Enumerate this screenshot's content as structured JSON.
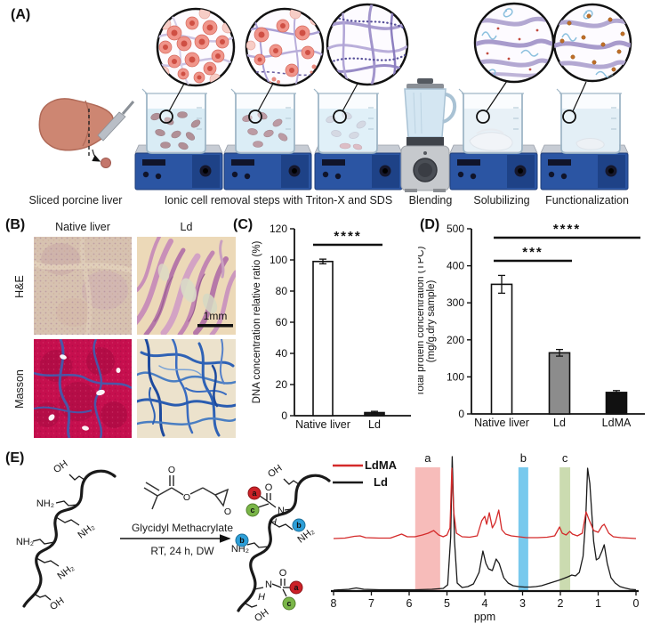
{
  "panels": {
    "A": {
      "label": "(A)",
      "captions": [
        "Sliced porcine liver",
        "Ionic cell removal steps with Triton-X and SDS",
        "Blending",
        "Solubilizing",
        "Functionalization"
      ]
    },
    "B": {
      "label": "(B)",
      "col_headers": [
        "Native liver",
        "Ld"
      ],
      "row_headers": [
        "H&E",
        "Masson"
      ],
      "scale_bar": "1mm"
    },
    "C": {
      "label": "(C)"
    },
    "D": {
      "label": "(D)"
    },
    "E": {
      "label": "(E)",
      "reagent": "Glycidyl Methacrylate",
      "conditions": "RT, 24 h, DW",
      "chem_labels": {
        "oh": "OH",
        "nh2": "NH₂",
        "n": "N",
        "h": "H",
        "o": "O",
        "a": "a",
        "b": "b",
        "c": "c"
      }
    }
  },
  "palette": {
    "stirrer_blue": "#2b55a3",
    "liquid_blue": "#cfe7f3",
    "masson_red": "#c60f4e",
    "masson_blue": "#2f62b5",
    "he_tan": "#ecd9b8",
    "he_pink": "#c289b6",
    "liver_brown": "#cd8672"
  },
  "chart_data": [
    {
      "id": "dna",
      "type": "bar",
      "panel": "C",
      "categories": [
        "Native liver",
        "Ld"
      ],
      "values": [
        99,
        2
      ],
      "errors": [
        1.5,
        0.8
      ],
      "bar_colors": [
        "#ffffff",
        "#1a1a1a"
      ],
      "ylabel": "DNA concentration relative ratio (%)",
      "ylim": [
        0,
        120
      ],
      "yticks": [
        0,
        20,
        40,
        60,
        80,
        100,
        120
      ],
      "significance": [
        {
          "label": "****",
          "between": [
            "Native liver",
            "Ld"
          ]
        }
      ]
    },
    {
      "id": "tpc",
      "type": "bar",
      "panel": "D",
      "categories": [
        "Native liver",
        "Ld",
        "LdMA"
      ],
      "values": [
        350,
        165,
        58
      ],
      "errors": [
        24,
        9,
        5
      ],
      "bar_colors": [
        "#ffffff",
        "#8c8c8c",
        "#111111"
      ],
      "ylabel_lines": [
        "Total protein concentration (TPC)",
        "(mg/g.dry sample)"
      ],
      "ylim": [
        0,
        500
      ],
      "yticks": [
        0,
        100,
        200,
        300,
        400,
        500
      ],
      "significance": [
        {
          "label": "***",
          "between": [
            "Native liver",
            "Ld"
          ]
        },
        {
          "label": "****",
          "between": [
            "Native liver",
            "LdMA"
          ]
        }
      ]
    },
    {
      "id": "nmr",
      "type": "line",
      "panel": "E",
      "xlabel": "ppm",
      "x_range": [
        8,
        0
      ],
      "xticks": [
        8,
        7,
        6,
        5,
        4,
        3,
        2,
        1,
        0
      ],
      "legend": [
        {
          "name": "LdMA",
          "color": "#d42a2a"
        },
        {
          "name": "Ld",
          "color": "#1a1a1a"
        }
      ],
      "bands": [
        {
          "label": "a",
          "ppm": [
            5.84,
            5.18
          ],
          "color": "#f2908c",
          "opacity": 0.6
        },
        {
          "label": "b",
          "ppm": [
            3.11,
            2.85
          ],
          "color": "#56bbe8",
          "opacity": 0.8
        },
        {
          "label": "c",
          "ppm": [
            2.02,
            1.74
          ],
          "color": "#b5cc8e",
          "opacity": 0.7
        }
      ],
      "series": [
        {
          "name": "LdMA",
          "color": "#d42a2a",
          "points": [
            [
              8,
              0
            ],
            [
              7.7,
              0.5
            ],
            [
              7.45,
              2.5
            ],
            [
              7.3,
              3
            ],
            [
              7.15,
              1
            ],
            [
              6.8,
              0.5
            ],
            [
              6.5,
              0.5
            ],
            [
              6.2,
              5
            ],
            [
              6.05,
              2
            ],
            [
              5.85,
              2
            ],
            [
              5.65,
              4
            ],
            [
              5.5,
              6
            ],
            [
              5.35,
              9
            ],
            [
              5.22,
              4
            ],
            [
              5.1,
              2
            ],
            [
              5.0,
              4
            ],
            [
              4.92,
              12
            ],
            [
              4.87,
              79
            ],
            [
              4.82,
              30
            ],
            [
              4.75,
              6
            ],
            [
              4.6,
              2
            ],
            [
              4.4,
              1.5
            ],
            [
              4.2,
              3
            ],
            [
              4.08,
              20
            ],
            [
              4.0,
              25
            ],
            [
              3.95,
              16
            ],
            [
              3.88,
              29
            ],
            [
              3.8,
              12
            ],
            [
              3.72,
              18
            ],
            [
              3.63,
              32
            ],
            [
              3.55,
              10
            ],
            [
              3.45,
              5
            ],
            [
              3.3,
              3
            ],
            [
              3.1,
              2
            ],
            [
              2.9,
              1
            ],
            [
              2.6,
              1
            ],
            [
              2.35,
              1.5
            ],
            [
              2.15,
              3
            ],
            [
              2.02,
              13
            ],
            [
              1.95,
              6
            ],
            [
              1.85,
              4
            ],
            [
              1.75,
              8
            ],
            [
              1.68,
              5
            ],
            [
              1.55,
              3
            ],
            [
              1.42,
              6
            ],
            [
              1.32,
              30
            ],
            [
              1.25,
              22
            ],
            [
              1.12,
              9
            ],
            [
              1.0,
              7
            ],
            [
              0.9,
              14
            ],
            [
              0.84,
              16
            ],
            [
              0.72,
              6
            ],
            [
              0.6,
              2
            ],
            [
              0.4,
              1
            ],
            [
              0.2,
              0.5
            ],
            [
              0,
              0
            ]
          ]
        },
        {
          "name": "Ld",
          "color": "#1a1a1a",
          "points": [
            [
              8,
              0
            ],
            [
              7.6,
              1
            ],
            [
              7.4,
              2.5
            ],
            [
              7.2,
              1
            ],
            [
              6.8,
              0.5
            ],
            [
              6.3,
              0.5
            ],
            [
              5.8,
              0.5
            ],
            [
              5.4,
              1
            ],
            [
              5.1,
              2
            ],
            [
              4.98,
              6
            ],
            [
              4.9,
              60
            ],
            [
              4.86,
              150
            ],
            [
              4.8,
              55
            ],
            [
              4.73,
              8
            ],
            [
              4.6,
              3
            ],
            [
              4.45,
              4
            ],
            [
              4.3,
              7
            ],
            [
              4.15,
              20
            ],
            [
              4.05,
              44
            ],
            [
              3.97,
              30
            ],
            [
              3.9,
              24
            ],
            [
              3.8,
              22
            ],
            [
              3.7,
              35
            ],
            [
              3.62,
              30
            ],
            [
              3.5,
              14
            ],
            [
              3.38,
              8
            ],
            [
              3.25,
              5
            ],
            [
              3.1,
              4
            ],
            [
              2.95,
              3.5
            ],
            [
              2.8,
              3.5
            ],
            [
              2.65,
              4
            ],
            [
              2.5,
              5
            ],
            [
              2.35,
              7
            ],
            [
              2.2,
              9
            ],
            [
              2.05,
              11
            ],
            [
              1.92,
              13
            ],
            [
              1.8,
              15
            ],
            [
              1.7,
              17
            ],
            [
              1.6,
              16
            ],
            [
              1.5,
              20
            ],
            [
              1.4,
              38
            ],
            [
              1.33,
              80
            ],
            [
              1.28,
              137
            ],
            [
              1.22,
              120
            ],
            [
              1.12,
              55
            ],
            [
              1.05,
              34
            ],
            [
              0.98,
              36
            ],
            [
              0.9,
              44
            ],
            [
              0.84,
              51
            ],
            [
              0.76,
              30
            ],
            [
              0.66,
              14
            ],
            [
              0.55,
              8
            ],
            [
              0.42,
              4
            ],
            [
              0.3,
              2.5
            ],
            [
              0.15,
              1
            ],
            [
              0,
              0.5
            ]
          ]
        }
      ]
    }
  ]
}
